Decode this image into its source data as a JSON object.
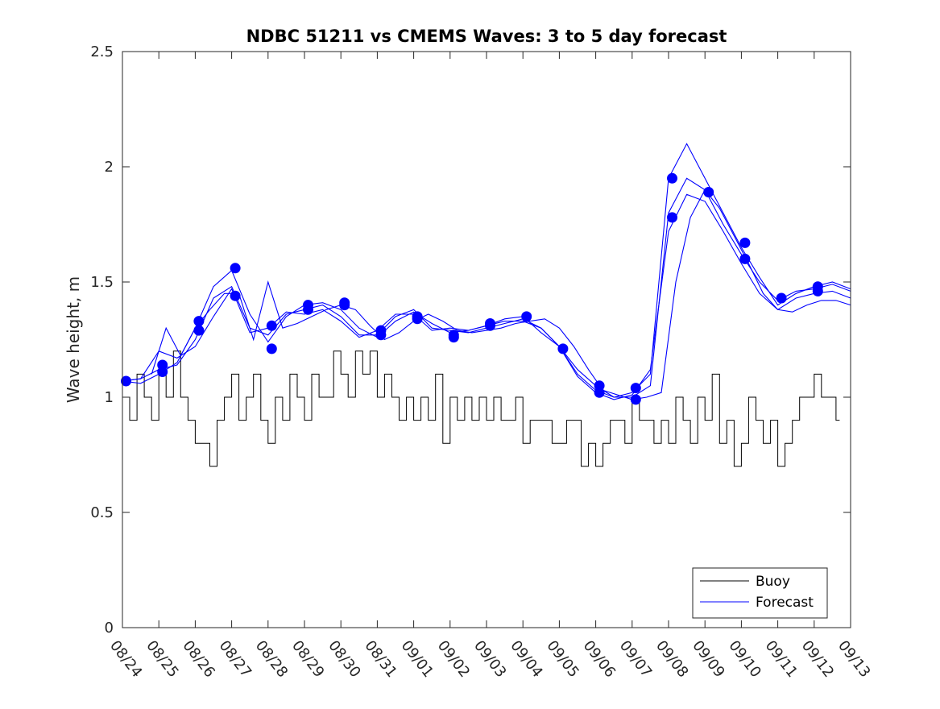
{
  "chart_data": {
    "type": "line",
    "title": "NDBC 51211 vs CMEMS Waves: 3 to 5 day forecast",
    "xlabel": "",
    "ylabel": "Wave height, m",
    "xlim": [
      0,
      20
    ],
    "ylim": [
      0,
      2.5
    ],
    "yticks": [
      "0",
      "0.5",
      "1",
      "1.5",
      "2",
      "2.5"
    ],
    "xticks": [
      "08/24",
      "08/25",
      "08/26",
      "08/27",
      "08/28",
      "08/29",
      "08/30",
      "08/31",
      "09/01",
      "09/02",
      "09/03",
      "09/04",
      "09/05",
      "09/06",
      "09/07",
      "09/08",
      "09/09",
      "09/10",
      "09/11",
      "09/12",
      "09/13"
    ],
    "grid": false,
    "legend_position": "bottom-right",
    "legend": [
      "Buoy",
      "Forecast"
    ],
    "colors": {
      "buoy": "#000000",
      "forecast": "#0000ff",
      "axis": "#262626"
    },
    "buoy": {
      "name": "Buoy",
      "x": [
        0,
        0.2,
        0.4,
        0.6,
        0.8,
        1.0,
        1.2,
        1.4,
        1.6,
        1.8,
        2.0,
        2.2,
        2.4,
        2.6,
        2.8,
        3.0,
        3.2,
        3.4,
        3.6,
        3.8,
        4.0,
        4.2,
        4.4,
        4.6,
        4.8,
        5.0,
        5.2,
        5.4,
        5.6,
        5.8,
        6.0,
        6.2,
        6.4,
        6.6,
        6.8,
        7.0,
        7.2,
        7.4,
        7.6,
        7.8,
        8.0,
        8.2,
        8.4,
        8.6,
        8.8,
        9.0,
        9.2,
        9.4,
        9.6,
        9.8,
        10.0,
        10.2,
        10.4,
        10.6,
        10.8,
        11.0,
        11.2,
        11.4,
        11.6,
        11.8,
        12.0,
        12.2,
        12.4,
        12.6,
        12.8,
        13.0,
        13.2,
        13.4,
        13.6,
        13.8,
        14.0,
        14.2,
        14.4,
        14.6,
        14.8,
        15.0,
        15.2,
        15.4,
        15.6,
        15.8,
        16.0,
        16.2,
        16.4,
        16.6,
        16.8,
        17.0,
        17.2,
        17.4,
        17.6,
        17.8,
        18.0,
        18.2,
        18.4,
        18.6,
        18.8,
        19.0,
        19.2,
        19.4,
        19.6
      ],
      "y": [
        1.0,
        0.9,
        1.1,
        1.0,
        0.9,
        1.1,
        1.0,
        1.2,
        1.0,
        0.9,
        0.8,
        0.8,
        0.7,
        0.9,
        1.0,
        1.1,
        0.9,
        1.0,
        1.1,
        0.9,
        0.8,
        1.0,
        0.9,
        1.1,
        1.0,
        0.9,
        1.1,
        1.0,
        1.0,
        1.2,
        1.1,
        1.0,
        1.2,
        1.1,
        1.2,
        1.0,
        1.1,
        1.0,
        0.9,
        1.0,
        0.9,
        1.0,
        0.9,
        1.1,
        0.8,
        1.0,
        0.9,
        1.0,
        0.9,
        1.0,
        0.9,
        1.0,
        0.9,
        0.9,
        1.0,
        0.8,
        0.9,
        0.9,
        0.9,
        0.8,
        0.8,
        0.9,
        0.9,
        0.7,
        0.8,
        0.7,
        0.8,
        0.9,
        0.9,
        0.8,
        1.0,
        0.9,
        0.9,
        0.8,
        0.9,
        0.8,
        1.0,
        0.9,
        0.8,
        1.0,
        0.9,
        1.1,
        0.8,
        0.9,
        0.7,
        0.8,
        1.0,
        0.9,
        0.8,
        0.9,
        0.7,
        0.8,
        0.9,
        1.0,
        1.0,
        1.1,
        1.0,
        1.0,
        0.9
      ]
    },
    "forecast": {
      "name": "Forecast",
      "series": [
        {
          "x": [
            0,
            0.5,
            1.0,
            1.5,
            2.0,
            2.5,
            3.0,
            3.5,
            4.0,
            4.5,
            5.0,
            5.5,
            6.0,
            6.5,
            7.0,
            7.5,
            8.0,
            8.5,
            9.0,
            9.5,
            10.0,
            10.5,
            11.0,
            11.5,
            12.0,
            12.5,
            13.0,
            13.5,
            14.0,
            14.5,
            15.0,
            15.5,
            16.0,
            16.5,
            17.0,
            17.5,
            18.0,
            18.5,
            19.0,
            19.5,
            20.0
          ],
          "y": [
            1.07,
            1.06,
            1.1,
            1.15,
            1.3,
            1.48,
            1.55,
            1.36,
            1.24,
            1.35,
            1.4,
            1.41,
            1.38,
            1.3,
            1.26,
            1.33,
            1.37,
            1.32,
            1.28,
            1.29,
            1.31,
            1.34,
            1.35,
            1.28,
            1.22,
            1.12,
            1.05,
            1.0,
            1.02,
            1.1,
            1.95,
            2.1,
            1.95,
            1.8,
            1.65,
            1.52,
            1.4,
            1.45,
            1.48,
            1.5,
            1.47
          ]
        },
        {
          "x": [
            0,
            0.5,
            1.0,
            1.5,
            2.0,
            2.5,
            3.0,
            3.5,
            4.0,
            4.5,
            5.0,
            5.5,
            6.0,
            6.5,
            7.0,
            7.5,
            8.0,
            8.5,
            9.0,
            9.5,
            10.0,
            10.5,
            11.0,
            11.5,
            12.0,
            12.5,
            13.0,
            13.5,
            14.0,
            14.5,
            15.0,
            15.5,
            16.0,
            16.5,
            17.0,
            17.5,
            18.0,
            18.5,
            19.0,
            19.5,
            20.0
          ],
          "y": [
            1.07,
            1.08,
            1.12,
            1.14,
            1.25,
            1.43,
            1.48,
            1.3,
            1.27,
            1.36,
            1.38,
            1.4,
            1.35,
            1.27,
            1.27,
            1.35,
            1.38,
            1.3,
            1.29,
            1.28,
            1.3,
            1.32,
            1.34,
            1.3,
            1.22,
            1.1,
            1.03,
            1.0,
            1.0,
            1.05,
            1.8,
            1.95,
            1.9,
            1.75,
            1.62,
            1.5,
            1.42,
            1.46,
            1.47,
            1.49,
            1.46
          ]
        },
        {
          "x": [
            0,
            0.5,
            1.0,
            1.5,
            2.0,
            2.5,
            3.0,
            3.5,
            4.0,
            4.5,
            5.0,
            5.5,
            6.0,
            6.5,
            7.0,
            7.5,
            8.0,
            8.5,
            9.0,
            9.5,
            10.0,
            10.5,
            11.0,
            11.5,
            12.0,
            12.5,
            13.0,
            13.5,
            14.0,
            14.5,
            15.0,
            15.5,
            16.0,
            16.5,
            17.0,
            17.5,
            18.0,
            18.5,
            19.0,
            19.5,
            20.0
          ],
          "y": [
            1.07,
            1.08,
            1.2,
            1.17,
            1.22,
            1.35,
            1.47,
            1.28,
            1.3,
            1.37,
            1.36,
            1.38,
            1.33,
            1.26,
            1.29,
            1.36,
            1.36,
            1.29,
            1.3,
            1.29,
            1.31,
            1.33,
            1.33,
            1.3,
            1.22,
            1.09,
            1.02,
            0.99,
            1.01,
            1.12,
            1.72,
            1.88,
            1.85,
            1.72,
            1.58,
            1.45,
            1.38,
            1.43,
            1.45,
            1.46,
            1.43
          ]
        },
        {
          "x": [
            0.8,
            1.2,
            1.6,
            2.0,
            2.4,
            2.8,
            3.2,
            3.6,
            4.0,
            4.4,
            4.8,
            5.2,
            5.6,
            6.0,
            6.4,
            6.8,
            7.2,
            7.6,
            8.0,
            8.4,
            8.8,
            9.2,
            9.6,
            10.0,
            10.4,
            10.8,
            11.2,
            11.6,
            12.0,
            12.4,
            12.8,
            13.2,
            13.6,
            14.0,
            14.4,
            14.8,
            15.2,
            15.6,
            16.0,
            16.4,
            16.8,
            17.2,
            17.6,
            18.0,
            18.4,
            18.8,
            19.2,
            19.6,
            20.0
          ],
          "y": [
            1.1,
            1.3,
            1.18,
            1.3,
            1.38,
            1.45,
            1.45,
            1.25,
            1.5,
            1.3,
            1.32,
            1.35,
            1.38,
            1.4,
            1.38,
            1.31,
            1.25,
            1.28,
            1.33,
            1.36,
            1.33,
            1.29,
            1.28,
            1.29,
            1.3,
            1.32,
            1.33,
            1.34,
            1.3,
            1.22,
            1.12,
            1.03,
            1.01,
            0.99,
            1.0,
            1.02,
            1.5,
            1.78,
            1.9,
            1.82,
            1.7,
            1.58,
            1.45,
            1.38,
            1.37,
            1.4,
            1.42,
            1.42,
            1.4
          ]
        }
      ],
      "markers": {
        "x": [
          0.1,
          1.1,
          1.1,
          2.1,
          2.1,
          3.1,
          3.1,
          4.1,
          4.1,
          5.1,
          5.1,
          6.1,
          6.1,
          7.1,
          7.1,
          8.1,
          8.1,
          9.1,
          9.1,
          10.1,
          10.1,
          11.1,
          12.1,
          13.1,
          13.1,
          14.1,
          14.1,
          15.1,
          15.1,
          16.1,
          17.1,
          17.1,
          18.1,
          19.1,
          19.1
        ],
        "y": [
          1.07,
          1.14,
          1.11,
          1.33,
          1.29,
          1.56,
          1.44,
          1.31,
          1.21,
          1.4,
          1.38,
          1.41,
          1.4,
          1.29,
          1.27,
          1.35,
          1.34,
          1.27,
          1.26,
          1.32,
          1.31,
          1.35,
          1.21,
          1.05,
          1.02,
          1.04,
          0.99,
          1.95,
          1.78,
          1.89,
          1.67,
          1.6,
          1.43,
          1.48,
          1.46
        ]
      }
    }
  }
}
